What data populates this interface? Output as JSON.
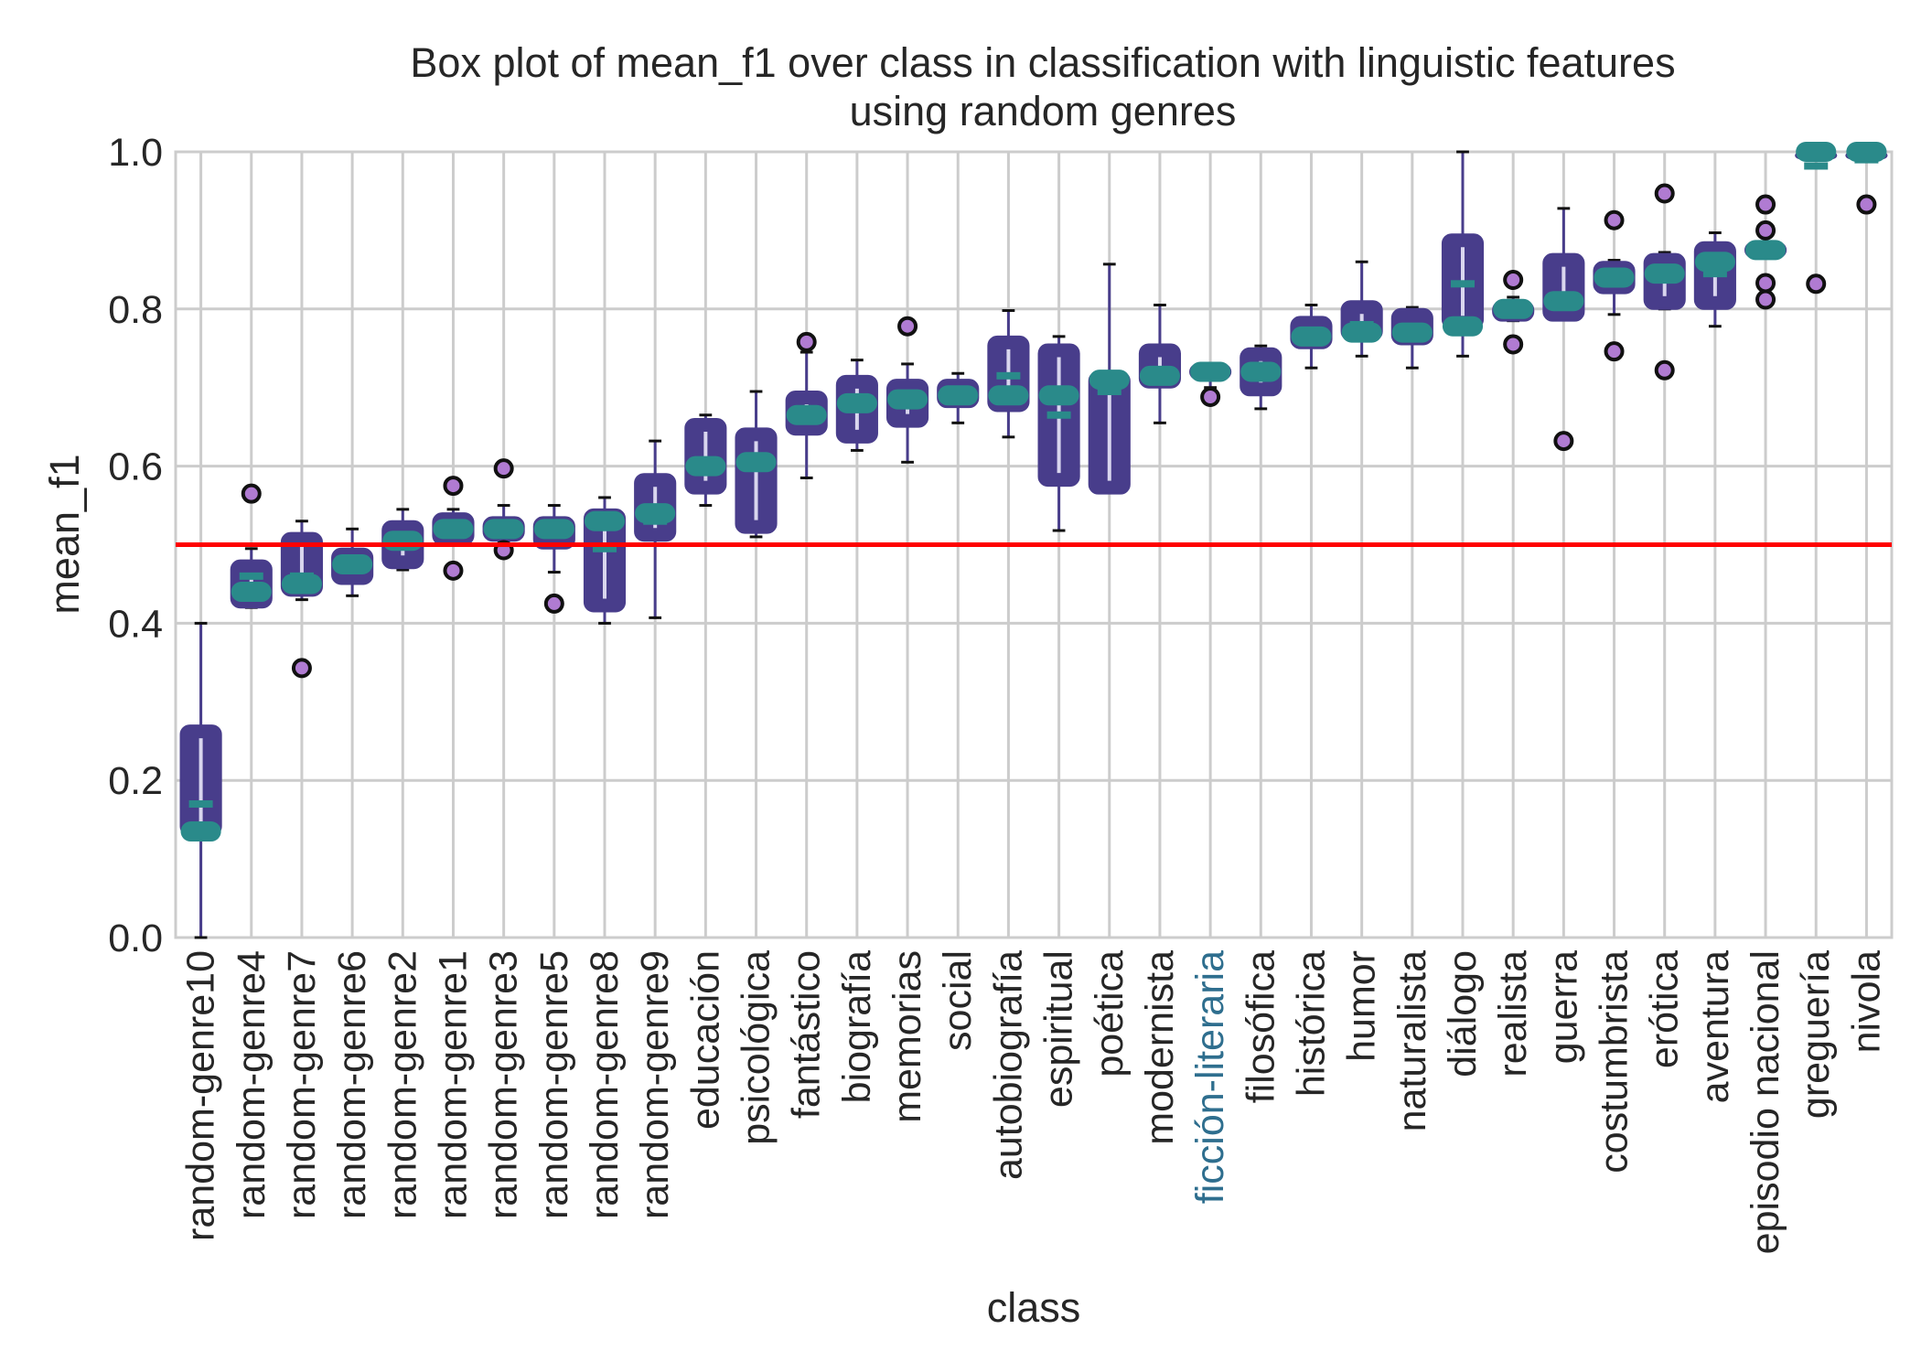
{
  "chart_data": {
    "type": "box",
    "title_line1": "Box plot of mean_f1 over class in classification with linguistic features",
    "title_line2": "using random genres",
    "xlabel": "class",
    "ylabel": "mean_f1",
    "ylim": [
      0.0,
      1.0
    ],
    "yticks": [
      "0.0",
      "0.2",
      "0.4",
      "0.6",
      "0.8",
      "1.0"
    ],
    "grid": true,
    "reference_line": {
      "y": 0.5,
      "color": "#ff0000"
    },
    "colors": {
      "box": "#483d8b",
      "median": "#2a8a8a",
      "mean": "#2a8a8a",
      "flier": "#b07bd2",
      "grid": "#cccccc",
      "highlight_label": "#2e6e8e"
    },
    "highlighted_category": "ficción-literaria",
    "boxes": [
      {
        "label": "random-genre10",
        "wlo": 0.0,
        "q1": 0.13,
        "med": 0.135,
        "q3": 0.27,
        "whi": 0.4,
        "mean": 0.17,
        "fliers": []
      },
      {
        "label": "random-genre4",
        "wlo": 0.42,
        "q1": 0.42,
        "med": 0.44,
        "q3": 0.48,
        "whi": 0.495,
        "mean": 0.46,
        "fliers": [
          0.565
        ]
      },
      {
        "label": "random-genre7",
        "wlo": 0.43,
        "q1": 0.435,
        "med": 0.45,
        "q3": 0.515,
        "whi": 0.53,
        "mean": 0.46,
        "fliers": [
          0.343
        ]
      },
      {
        "label": "random-genre6",
        "wlo": 0.435,
        "q1": 0.45,
        "med": 0.475,
        "q3": 0.495,
        "whi": 0.52,
        "mean": 0.48,
        "fliers": []
      },
      {
        "label": "random-genre2",
        "wlo": 0.468,
        "q1": 0.47,
        "med": 0.505,
        "q3": 0.53,
        "whi": 0.545,
        "mean": 0.505,
        "fliers": []
      },
      {
        "label": "random-genre1",
        "wlo": 0.5,
        "q1": 0.5,
        "med": 0.52,
        "q3": 0.54,
        "whi": 0.545,
        "mean": 0.515,
        "fliers": [
          0.575,
          0.467
        ]
      },
      {
        "label": "random-genre3",
        "wlo": 0.505,
        "q1": 0.505,
        "med": 0.52,
        "q3": 0.535,
        "whi": 0.55,
        "mean": 0.52,
        "fliers": [
          0.597,
          0.493
        ]
      },
      {
        "label": "random-genre5",
        "wlo": 0.465,
        "q1": 0.495,
        "med": 0.52,
        "q3": 0.535,
        "whi": 0.55,
        "mean": 0.515,
        "fliers": [
          0.425
        ]
      },
      {
        "label": "random-genre8",
        "wlo": 0.4,
        "q1": 0.415,
        "med": 0.53,
        "q3": 0.545,
        "whi": 0.56,
        "mean": 0.495,
        "fliers": []
      },
      {
        "label": "random-genre9",
        "wlo": 0.407,
        "q1": 0.505,
        "med": 0.54,
        "q3": 0.59,
        "whi": 0.632,
        "mean": 0.53,
        "fliers": []
      },
      {
        "label": "educación",
        "wlo": 0.55,
        "q1": 0.565,
        "med": 0.6,
        "q3": 0.66,
        "whi": 0.665,
        "mean": 0.6,
        "fliers": []
      },
      {
        "label": "psicológica",
        "wlo": 0.51,
        "q1": 0.515,
        "med": 0.605,
        "q3": 0.648,
        "whi": 0.695,
        "mean": 0.605,
        "fliers": []
      },
      {
        "label": "fantástico",
        "wlo": 0.585,
        "q1": 0.64,
        "med": 0.665,
        "q3": 0.695,
        "whi": 0.745,
        "mean": 0.67,
        "fliers": [
          0.758
        ]
      },
      {
        "label": "biografía",
        "wlo": 0.62,
        "q1": 0.63,
        "med": 0.68,
        "q3": 0.715,
        "whi": 0.735,
        "mean": 0.675,
        "fliers": []
      },
      {
        "label": "memorias",
        "wlo": 0.605,
        "q1": 0.65,
        "med": 0.685,
        "q3": 0.71,
        "whi": 0.73,
        "mean": 0.68,
        "fliers": [
          0.778
        ]
      },
      {
        "label": "social",
        "wlo": 0.655,
        "q1": 0.675,
        "med": 0.69,
        "q3": 0.71,
        "whi": 0.718,
        "mean": 0.69,
        "fliers": []
      },
      {
        "label": "autobiografía",
        "wlo": 0.637,
        "q1": 0.67,
        "med": 0.69,
        "q3": 0.765,
        "whi": 0.798,
        "mean": 0.715,
        "fliers": []
      },
      {
        "label": "espiritual",
        "wlo": 0.518,
        "q1": 0.575,
        "med": 0.69,
        "q3": 0.755,
        "whi": 0.765,
        "mean": 0.665,
        "fliers": []
      },
      {
        "label": "poética",
        "wlo": 0.57,
        "q1": 0.565,
        "med": 0.71,
        "q3": 0.72,
        "whi": 0.857,
        "mean": 0.695,
        "fliers": []
      },
      {
        "label": "modernista",
        "wlo": 0.655,
        "q1": 0.7,
        "med": 0.715,
        "q3": 0.755,
        "whi": 0.805,
        "mean": 0.72,
        "fliers": []
      },
      {
        "label": "ficción-literaria",
        "wlo": 0.7,
        "q1": 0.71,
        "med": 0.72,
        "q3": 0.73,
        "whi": 0.73,
        "mean": 0.72,
        "fliers": [
          0.688
        ]
      },
      {
        "label": "filosófica",
        "wlo": 0.673,
        "q1": 0.69,
        "med": 0.72,
        "q3": 0.75,
        "whi": 0.753,
        "mean": 0.72,
        "fliers": []
      },
      {
        "label": "histórica",
        "wlo": 0.725,
        "q1": 0.75,
        "med": 0.765,
        "q3": 0.79,
        "whi": 0.805,
        "mean": 0.77,
        "fliers": []
      },
      {
        "label": "humor",
        "wlo": 0.74,
        "q1": 0.76,
        "med": 0.77,
        "q3": 0.81,
        "whi": 0.86,
        "mean": 0.78,
        "fliers": []
      },
      {
        "label": "naturalista",
        "wlo": 0.725,
        "q1": 0.755,
        "med": 0.77,
        "q3": 0.8,
        "whi": 0.802,
        "mean": 0.775,
        "fliers": []
      },
      {
        "label": "diálogo",
        "wlo": 0.74,
        "q1": 0.775,
        "med": 0.778,
        "q3": 0.895,
        "whi": 1.0,
        "mean": 0.832,
        "fliers": []
      },
      {
        "label": "realista",
        "wlo": 0.785,
        "q1": 0.785,
        "med": 0.8,
        "q3": 0.81,
        "whi": 0.815,
        "mean": 0.8,
        "fliers": [
          0.837,
          0.755
        ]
      },
      {
        "label": "guerra",
        "wlo": 0.79,
        "q1": 0.785,
        "med": 0.81,
        "q3": 0.87,
        "whi": 0.928,
        "mean": 0.815,
        "fliers": [
          0.632
        ]
      },
      {
        "label": "costumbrista",
        "wlo": 0.793,
        "q1": 0.82,
        "med": 0.84,
        "q3": 0.86,
        "whi": 0.862,
        "mean": 0.835,
        "fliers": [
          0.913,
          0.746
        ]
      },
      {
        "label": "erótica",
        "wlo": 0.8,
        "q1": 0.8,
        "med": 0.845,
        "q3": 0.87,
        "whi": 0.872,
        "mean": 0.84,
        "fliers": [
          0.947,
          0.722
        ]
      },
      {
        "label": "aventura",
        "wlo": 0.778,
        "q1": 0.8,
        "med": 0.86,
        "q3": 0.885,
        "whi": 0.897,
        "mean": 0.845,
        "fliers": []
      },
      {
        "label": "episodio nacional",
        "wlo": 0.865,
        "q1": 0.865,
        "med": 0.875,
        "q3": 0.885,
        "whi": 0.885,
        "mean": 0.875,
        "fliers": [
          0.933,
          0.9,
          0.833,
          0.812
        ]
      },
      {
        "label": "greguería",
        "wlo": 1.0,
        "q1": 1.0,
        "med": 1.0,
        "q3": 1.0,
        "whi": 1.0,
        "mean": 0.982,
        "fliers": [
          0.832
        ]
      },
      {
        "label": "nivola",
        "wlo": 1.0,
        "q1": 1.0,
        "med": 1.0,
        "q3": 1.0,
        "whi": 1.0,
        "mean": 0.99,
        "fliers": [
          0.933
        ]
      }
    ]
  }
}
